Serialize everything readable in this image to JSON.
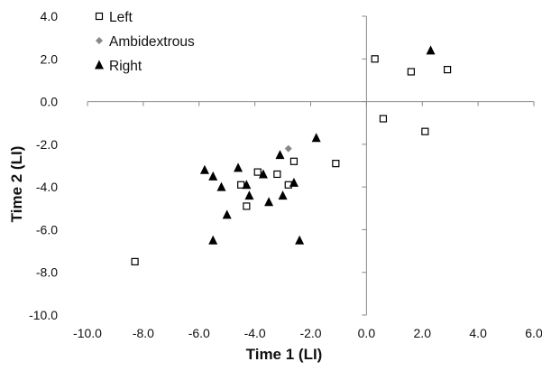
{
  "chart_data": {
    "type": "scatter",
    "title": "",
    "xlabel": "Time 1 (LI)",
    "ylabel": "Time 2 (LI)",
    "xlim": [
      -10.0,
      6.0
    ],
    "ylim": [
      -10.0,
      4.0
    ],
    "x_ticks": [
      -10.0,
      -8.0,
      -6.0,
      -4.0,
      -2.0,
      0.0,
      2.0,
      4.0,
      6.0
    ],
    "y_ticks": [
      -10.0,
      -8.0,
      -6.0,
      -4.0,
      -2.0,
      0.0,
      2.0,
      4.0
    ],
    "x_tick_labels": [
      "-10.0",
      "-8.0",
      "-6.0",
      "-4.0",
      "-2.0",
      "0.0",
      "2.0",
      "4.0",
      "6.0"
    ],
    "y_tick_labels": [
      "-10.0",
      "-8.0",
      "-6.0",
      "-4.0",
      "-2.0",
      "0.0",
      "2.0",
      "4.0"
    ],
    "grid": false,
    "legend_position": "top-left",
    "series": [
      {
        "name": "Left",
        "marker": "open-square",
        "color": "#000000",
        "points": [
          [
            0.3,
            2.0
          ],
          [
            1.6,
            1.4
          ],
          [
            2.9,
            1.5
          ],
          [
            0.6,
            -0.8
          ],
          [
            2.1,
            -1.4
          ],
          [
            -1.1,
            -2.9
          ],
          [
            -2.6,
            -2.8
          ],
          [
            -3.2,
            -3.4
          ],
          [
            -3.9,
            -3.3
          ],
          [
            -4.5,
            -3.9
          ],
          [
            -2.8,
            -3.9
          ],
          [
            -4.3,
            -4.9
          ],
          [
            -8.3,
            -7.5
          ]
        ]
      },
      {
        "name": "Ambidextrous",
        "marker": "diamond",
        "color": "#888888",
        "points": [
          [
            -2.8,
            -2.2
          ]
        ]
      },
      {
        "name": "Right",
        "marker": "triangle",
        "color": "#000000",
        "points": [
          [
            2.3,
            2.4
          ],
          [
            -1.8,
            -1.7
          ],
          [
            -3.1,
            -2.5
          ],
          [
            -4.6,
            -3.1
          ],
          [
            -5.8,
            -3.2
          ],
          [
            -5.5,
            -3.5
          ],
          [
            -3.7,
            -3.4
          ],
          [
            -5.2,
            -4.0
          ],
          [
            -4.3,
            -3.9
          ],
          [
            -4.2,
            -4.4
          ],
          [
            -3.0,
            -4.4
          ],
          [
            -2.6,
            -3.8
          ],
          [
            -3.5,
            -4.7
          ],
          [
            -5.0,
            -5.3
          ],
          [
            -5.5,
            -6.5
          ],
          [
            -2.4,
            -6.5
          ]
        ]
      }
    ]
  }
}
